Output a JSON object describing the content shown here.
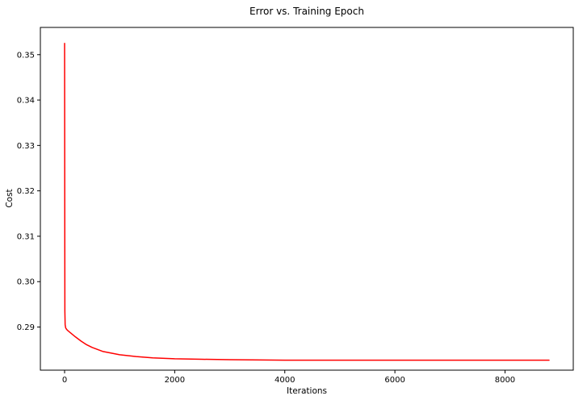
{
  "chart_data": {
    "type": "line",
    "title": "Error vs. Training Epoch",
    "xlabel": "Iterations",
    "ylabel": "Cost",
    "xlim": [
      -440,
      9240
    ],
    "ylim": [
      0.2805,
      0.356
    ],
    "xticks": [
      0,
      2000,
      4000,
      6000,
      8000
    ],
    "xtick_labels": [
      "0",
      "2000",
      "4000",
      "6000",
      "8000"
    ],
    "yticks": [
      0.29,
      0.3,
      0.31,
      0.32,
      0.33,
      0.34,
      0.35
    ],
    "ytick_labels": [
      "0.29",
      "0.30",
      "0.31",
      "0.32",
      "0.33",
      "0.34",
      "0.35"
    ],
    "grid": false,
    "legend": "none",
    "series": [
      {
        "color": "#ff0000",
        "x": [
          0,
          5,
          10,
          20,
          30,
          50,
          100,
          200,
          300,
          400,
          500,
          700,
          1000,
          1300,
          1600,
          2000,
          2500,
          3000,
          4000,
          5000,
          6000,
          7000,
          8000,
          8800
        ],
        "y": [
          0.3525,
          0.2935,
          0.2905,
          0.2898,
          0.2896,
          0.2893,
          0.2888,
          0.2878,
          0.2869,
          0.2861,
          0.2855,
          0.2846,
          0.2839,
          0.2835,
          0.2832,
          0.283,
          0.2829,
          0.2828,
          0.2827,
          0.2827,
          0.2827,
          0.2827,
          0.2827,
          0.2827
        ]
      }
    ]
  }
}
